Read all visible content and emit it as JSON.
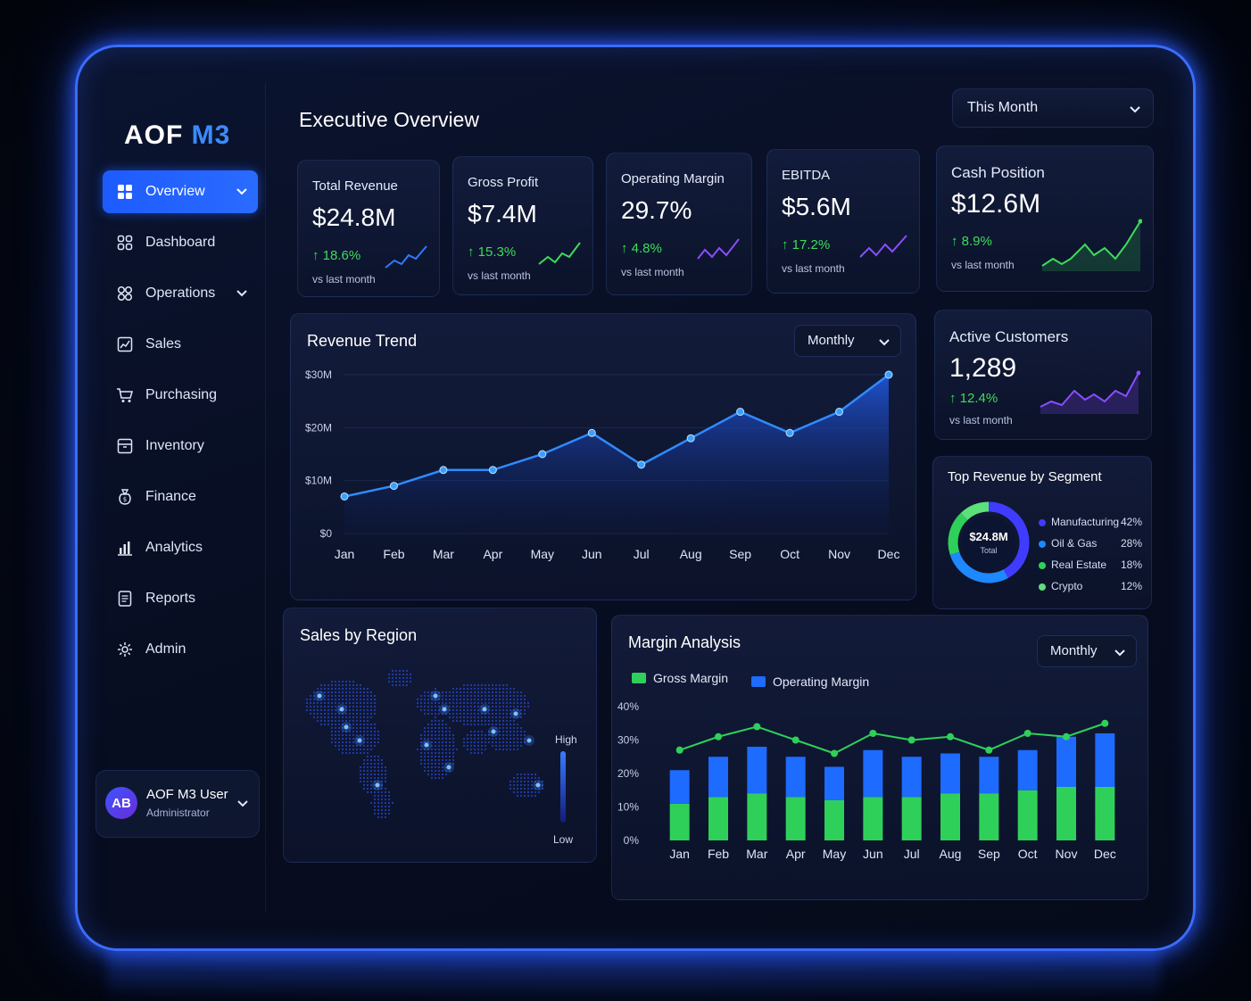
{
  "brand": {
    "part1": "AOF",
    "part2": "M3"
  },
  "sidebar": {
    "items": [
      {
        "label": "Overview",
        "icon": "grid-icon",
        "active": true,
        "expandable": true
      },
      {
        "label": "Dashboard",
        "icon": "dashboard-icon",
        "active": false,
        "expandable": false
      },
      {
        "label": "Operations",
        "icon": "operations-icon",
        "active": false,
        "expandable": true
      },
      {
        "label": "Sales",
        "icon": "sales-icon",
        "active": false,
        "expandable": false
      },
      {
        "label": "Purchasing",
        "icon": "cart-icon",
        "active": false,
        "expandable": false
      },
      {
        "label": "Inventory",
        "icon": "box-icon",
        "active": false,
        "expandable": false
      },
      {
        "label": "Finance",
        "icon": "finance-icon",
        "active": false,
        "expandable": false
      },
      {
        "label": "Analytics",
        "icon": "analytics-icon",
        "active": false,
        "expandable": false
      },
      {
        "label": "Reports",
        "icon": "reports-icon",
        "active": false,
        "expandable": false
      },
      {
        "label": "Admin",
        "icon": "gear-icon",
        "active": false,
        "expandable": false
      }
    ],
    "user": {
      "initials": "AB",
      "name": "AOF M3 User",
      "role": "Administrator"
    }
  },
  "header": {
    "title": "Executive Overview",
    "period": "This Month"
  },
  "kpis": [
    {
      "label": "Total Revenue",
      "value": "$24.8M",
      "change": "↑ 18.6%",
      "sub": "vs last month",
      "color": "#2f7bff"
    },
    {
      "label": "Gross Profit",
      "value": "$7.4M",
      "change": "↑ 15.3%",
      "sub": "vs last month",
      "color": "#3ddc5a"
    },
    {
      "label": "Operating Margin",
      "value": "29.7%",
      "change": "↑ 4.8%",
      "sub": "vs last month",
      "color": "#8a4dff"
    },
    {
      "label": "EBITDA",
      "value": "$5.6M",
      "change": "↑ 17.2%",
      "sub": "vs last month",
      "color": "#8a4dff"
    },
    {
      "label": "Cash Position",
      "value": "$12.6M",
      "change": "↑ 8.9%",
      "sub": "vs last month",
      "color": "#3ddc5a"
    }
  ],
  "active_customers": {
    "label": "Active Customers",
    "value": "1,289",
    "change": "↑ 12.4%",
    "sub": "vs last month",
    "color": "#8a4dff"
  },
  "revenue_trend": {
    "title": "Revenue Trend",
    "period": "Monthly"
  },
  "segments": {
    "title": "Top Revenue by Segment",
    "center_value": "$24.8M",
    "center_label": "Total",
    "items": [
      {
        "name": "Manufacturing",
        "pct": "42%",
        "value": 42,
        "color": "#3f3cff"
      },
      {
        "name": "Oil & Gas",
        "pct": "28%",
        "value": 28,
        "color": "#1e88ff"
      },
      {
        "name": "Real Estate",
        "pct": "18%",
        "value": 18,
        "color": "#2fd05a"
      },
      {
        "name": "Crypto",
        "pct": "12%",
        "value": 12,
        "color": "#5ce07a"
      }
    ]
  },
  "sales_region": {
    "title": "Sales by Region",
    "legend_high": "High",
    "legend_low": "Low"
  },
  "margin_analysis": {
    "title": "Margin Analysis",
    "period": "Monthly",
    "legend_gross": "Gross Margin",
    "legend_operating": "Operating Margin",
    "color_gross": "#2fd05a",
    "color_operating": "#1e6bff"
  },
  "chart_data": [
    {
      "type": "area",
      "categories": [
        "Jan",
        "Feb",
        "Mar",
        "Apr",
        "May",
        "Jun",
        "Jul",
        "Aug",
        "Sep",
        "Oct",
        "Nov",
        "Dec"
      ],
      "series": [
        {
          "values": [
            7,
            9,
            12,
            12,
            15,
            19,
            13,
            18,
            23,
            19,
            23,
            30
          ]
        }
      ],
      "yticks": [
        "$0",
        "$10M",
        "$20M",
        "$30M"
      ],
      "ylim": [
        0,
        30
      ],
      "title": "Revenue Trend"
    },
    {
      "type": "pie",
      "categories": [
        "Manufacturing",
        "Oil & Gas",
        "Real Estate",
        "Crypto"
      ],
      "values": [
        42,
        28,
        18,
        12
      ]
    },
    {
      "type": "bar",
      "categories": [
        "Jan",
        "Feb",
        "Mar",
        "Apr",
        "May",
        "Jun",
        "Jul",
        "Aug",
        "Sep",
        "Oct",
        "Nov",
        "Dec"
      ],
      "yticks": [
        "0%",
        "10%",
        "20%",
        "30%",
        "40%"
      ],
      "ylim": [
        0,
        40
      ],
      "series": [
        {
          "name": "Gross Margin",
          "values": [
            11,
            13,
            14,
            13,
            12,
            13,
            13,
            14,
            14,
            15,
            16,
            16
          ]
        },
        {
          "name": "Operating Margin",
          "values": [
            10,
            12,
            14,
            12,
            10,
            14,
            12,
            12,
            11,
            12,
            15,
            16
          ]
        }
      ],
      "line_values": [
        27,
        31,
        34,
        30,
        26,
        32,
        30,
        31,
        27,
        32,
        31,
        35
      ]
    }
  ]
}
